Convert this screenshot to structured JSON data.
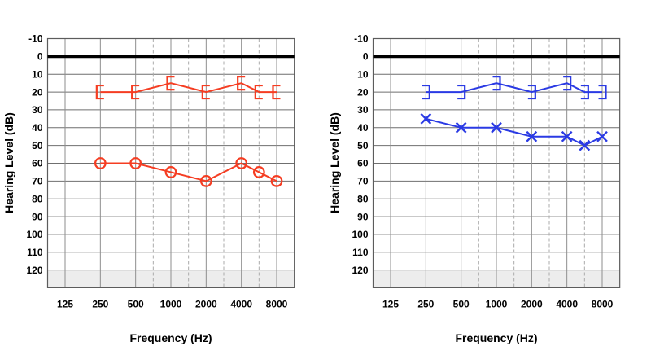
{
  "chart_data": [
    {
      "type": "line",
      "panel_position": "left",
      "ear": "right",
      "color": "#f53d22",
      "xlabel": "Frequency (Hz)",
      "ylabel": "Hearing Level (dB)",
      "x_scale": "octave",
      "x_ticks_hz": [
        125,
        250,
        500,
        1000,
        2000,
        4000,
        8000
      ],
      "x_tick_labels": [
        "125",
        "250",
        "500",
        "1000",
        "2000",
        "4000",
        "8000"
      ],
      "x_dashed_hz": [
        750,
        1500,
        3000,
        6000
      ],
      "y_ticks_db": [
        -10,
        0,
        10,
        20,
        30,
        40,
        50,
        60,
        70,
        80,
        90,
        100,
        110,
        120
      ],
      "y_tick_labels": [
        "-10",
        "0",
        "10",
        "20",
        "30",
        "40",
        "50",
        "60",
        "70",
        "80",
        "90",
        "100",
        "110",
        "120"
      ],
      "ylim": [
        -10,
        130
      ],
      "grid": true,
      "zero_reference_db": 0,
      "shaded_region": {
        "from_db": 120,
        "to_db": 130,
        "color": "#ededed"
      },
      "series": [
        {
          "name": "bone-conduction-masked-right-ear",
          "symbol": "[",
          "x_hz": [
            250,
            500,
            1000,
            2000,
            4000,
            6000,
            8000
          ],
          "values_db": [
            20,
            20,
            15,
            20,
            15,
            20,
            20
          ]
        },
        {
          "name": "air-conduction-right-ear",
          "symbol": "circle",
          "x_hz": [
            250,
            500,
            1000,
            2000,
            4000,
            6000,
            8000
          ],
          "values_db": [
            60,
            60,
            65,
            70,
            60,
            65,
            70
          ]
        }
      ]
    },
    {
      "type": "line",
      "panel_position": "right",
      "ear": "left",
      "color": "#2a3ae4",
      "xlabel": "Frequency (Hz)",
      "ylabel": "Hearing Level (dB)",
      "x_scale": "octave",
      "x_ticks_hz": [
        125,
        250,
        500,
        1000,
        2000,
        4000,
        8000
      ],
      "x_tick_labels": [
        "125",
        "250",
        "500",
        "1000",
        "2000",
        "4000",
        "8000"
      ],
      "x_dashed_hz": [
        750,
        1500,
        3000,
        6000
      ],
      "y_ticks_db": [
        -10,
        0,
        10,
        20,
        30,
        40,
        50,
        60,
        70,
        80,
        90,
        100,
        110,
        120
      ],
      "y_tick_labels": [
        "-10",
        "0",
        "10",
        "20",
        "30",
        "40",
        "50",
        "60",
        "70",
        "80",
        "90",
        "100",
        "110",
        "120"
      ],
      "ylim": [
        -10,
        130
      ],
      "grid": true,
      "zero_reference_db": 0,
      "shaded_region": {
        "from_db": 120,
        "to_db": 130,
        "color": "#ededed"
      },
      "series": [
        {
          "name": "bone-conduction-masked-left-ear",
          "symbol": "]",
          "x_hz": [
            250,
            500,
            1000,
            2000,
            4000,
            6000,
            8000
          ],
          "values_db": [
            20,
            20,
            15,
            20,
            15,
            20,
            20
          ]
        },
        {
          "name": "air-conduction-left-ear",
          "symbol": "x",
          "x_hz": [
            250,
            500,
            1000,
            2000,
            4000,
            6000,
            8000
          ],
          "values_db": [
            35,
            40,
            40,
            45,
            45,
            50,
            45
          ]
        }
      ]
    }
  ]
}
